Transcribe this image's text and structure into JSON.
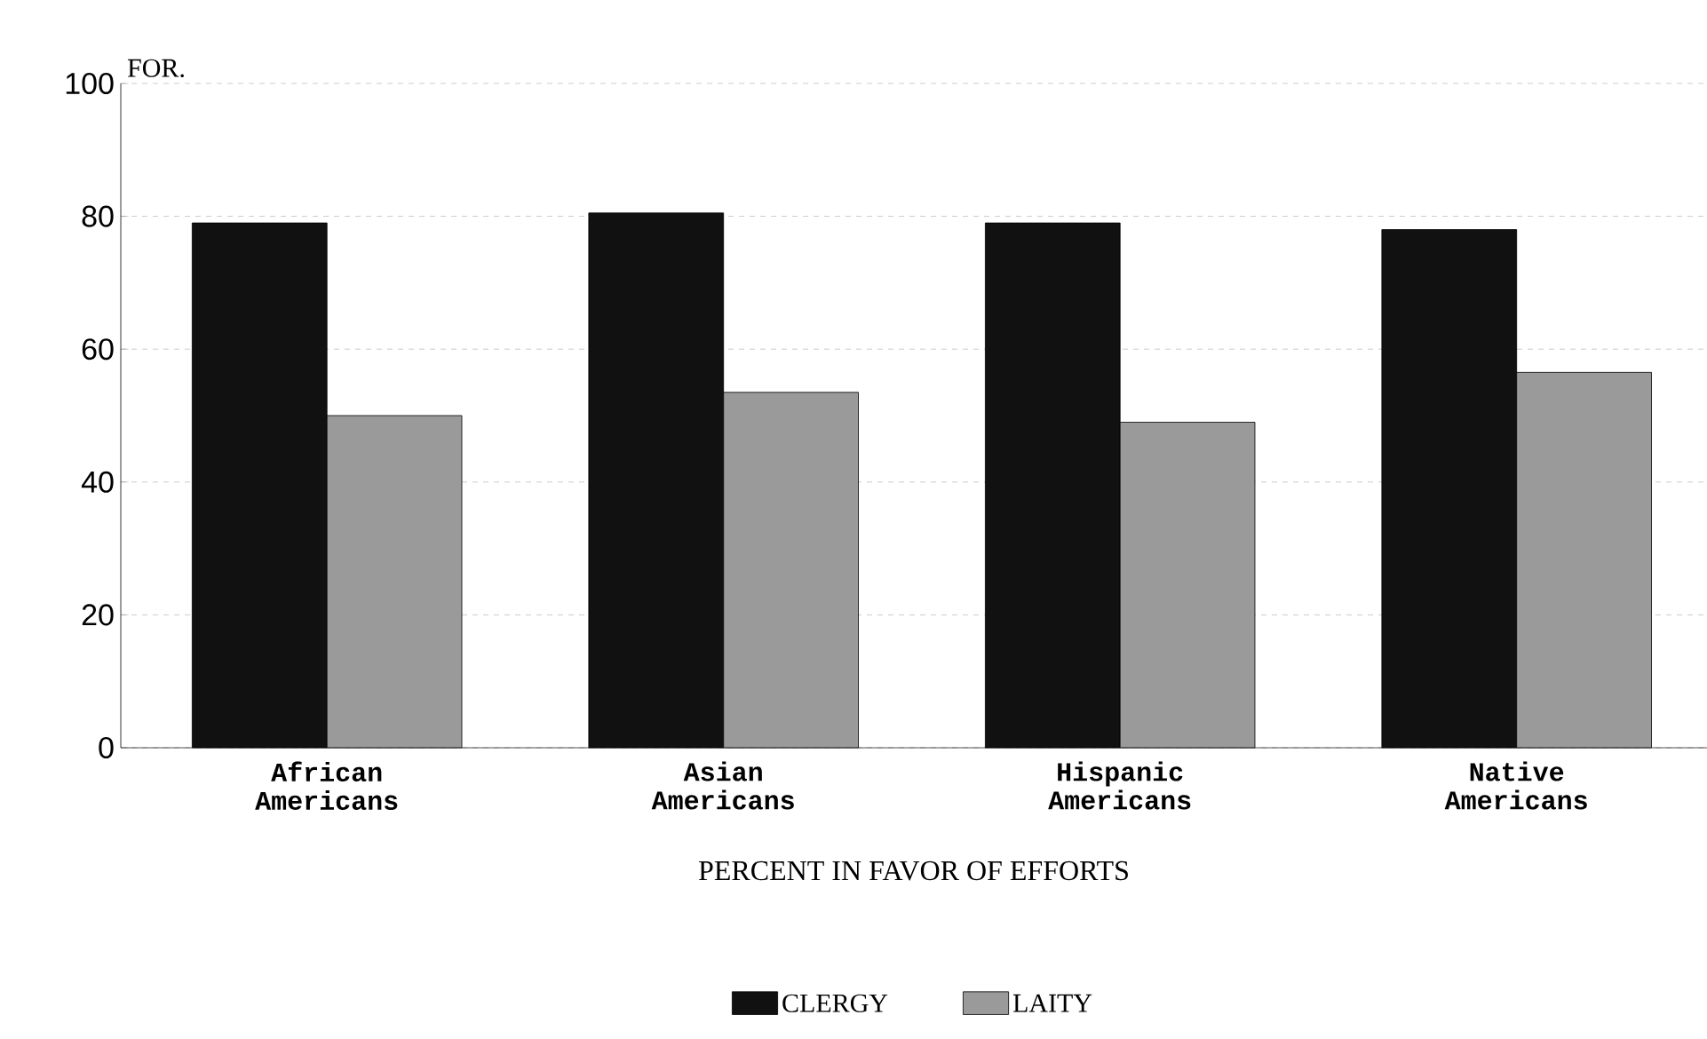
{
  "chart_data": {
    "type": "bar",
    "xlabel": "PERCENT IN FAVOR OF EFFORTS",
    "categories": [
      "African Americans",
      "Asian Americans",
      "Hispanic Americans",
      "Native Americans"
    ],
    "series": [
      {
        "name": "CLERGY",
        "color": "#111111",
        "values": [
          79,
          80.5,
          79,
          78
        ]
      },
      {
        "name": "LAITY",
        "color": "#9a9a9a",
        "values": [
          50,
          53.5,
          49,
          56.5
        ]
      }
    ],
    "ylim": [
      0,
      100
    ],
    "yticks": [
      0,
      20,
      40,
      60,
      80,
      100
    ],
    "grid": "y",
    "legend": "bottom",
    "annotations": [
      "FOR."
    ]
  }
}
